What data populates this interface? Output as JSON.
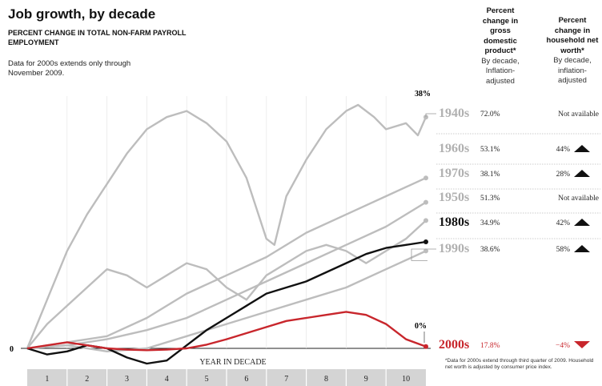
{
  "title": "Job growth, by decade",
  "subtitle": "PERCENT CHANGE IN TOTAL NON-FARM PAYROLL EMPLOYMENT",
  "note": "Data for 2000s extends only through November 2009.",
  "gdp_header": {
    "bold": "Percent change in gross domestic product*",
    "normal": "By decade, Inflation-adjusted"
  },
  "nw_header": {
    "bold": "Percent change in household net worth*",
    "normal": "By decade, inflation-adjusted"
  },
  "footnote": "*Data for 2000s extend through third quarter of 2009. Household net worth is adjusted by consumer price index.",
  "colors": {
    "gray": "#bdbdbd",
    "black": "#111111",
    "red": "#c8262c",
    "axis_band": "#d4d4d4"
  },
  "chart_data": {
    "type": "line",
    "x_label": "YEAR IN DECADE",
    "x_ticks": [
      "1",
      "2",
      "3",
      "4",
      "5",
      "6",
      "7",
      "8",
      "9",
      "10"
    ],
    "xlim": [
      0,
      10
    ],
    "y_zero_label": "0",
    "annotations": [
      {
        "text": "38%",
        "series": "1940s"
      },
      {
        "text": "0%",
        "series": "2000s"
      }
    ],
    "series": [
      {
        "name": "1940s",
        "style": "gray",
        "gdp": "72.0%",
        "networth": "Not available",
        "arrow": "",
        "x": [
          0,
          0.5,
          1,
          1.5,
          2,
          2.5,
          3,
          3.5,
          4,
          4.5,
          5,
          5.5,
          6,
          6.2,
          6.5,
          7,
          7.5,
          8,
          8.3,
          8.7,
          9,
          9.5,
          9.8,
          10
        ],
        "y": [
          0,
          8,
          16,
          22,
          27,
          32,
          36,
          38,
          39,
          37,
          34,
          28,
          18,
          17,
          25,
          31,
          36,
          39,
          40,
          38,
          36,
          37,
          35,
          38
        ]
      },
      {
        "name": "1960s",
        "style": "gray",
        "gdp": "53.1%",
        "networth": "44%",
        "arrow": "up",
        "x": [
          0,
          1,
          2,
          3,
          4,
          5,
          6,
          7,
          8,
          9,
          10
        ],
        "y": [
          0,
          1,
          2,
          5,
          9,
          12,
          15,
          19,
          22,
          25,
          28
        ]
      },
      {
        "name": "1970s",
        "style": "gray",
        "gdp": "38.1%",
        "networth": "28%",
        "arrow": "up",
        "x": [
          0,
          1,
          2,
          3,
          4,
          5,
          6,
          7,
          8,
          9,
          10
        ],
        "y": [
          0,
          0.5,
          1.5,
          3,
          5,
          8,
          11,
          14,
          17,
          20,
          24
        ]
      },
      {
        "name": "1950s",
        "style": "gray",
        "gdp": "51.3%",
        "networth": "Not available",
        "arrow": "",
        "x": [
          0,
          0.5,
          1,
          1.5,
          2,
          2.5,
          3,
          3.5,
          4,
          4.5,
          5,
          5.5,
          6,
          6.5,
          7,
          7.5,
          8,
          8.5,
          9,
          9.5,
          10
        ],
        "y": [
          0,
          4,
          7,
          10,
          13,
          12,
          10,
          12,
          14,
          13,
          10,
          8,
          12,
          14,
          16,
          17,
          16,
          14,
          16,
          18,
          21
        ]
      },
      {
        "name": "1980s",
        "style": "black",
        "gdp": "34.9%",
        "networth": "42%",
        "arrow": "up",
        "x": [
          0,
          0.5,
          1,
          1.5,
          2,
          2.5,
          3,
          3.5,
          4,
          4.5,
          5,
          5.5,
          6,
          6.5,
          7,
          7.5,
          8,
          8.5,
          9,
          9.5,
          10
        ],
        "y": [
          0,
          -1,
          -0.5,
          0.5,
          0,
          -1.5,
          -2.5,
          -2,
          0.5,
          3,
          5,
          7,
          9,
          10,
          11,
          12.5,
          14,
          15.5,
          16.5,
          17,
          17.5
        ]
      },
      {
        "name": "1990s",
        "style": "gray",
        "gdp": "38.6%",
        "networth": "58%",
        "arrow": "up",
        "x": [
          0,
          1,
          2,
          3,
          4,
          5,
          6,
          7,
          8,
          9,
          10
        ],
        "y": [
          0,
          0.5,
          -0.5,
          0,
          2,
          4,
          6,
          8,
          10,
          13,
          16
        ]
      },
      {
        "name": "2000s",
        "style": "red",
        "gdp": "17.8%",
        "networth": "−4%",
        "arrow": "down",
        "x": [
          0,
          0.5,
          1,
          1.5,
          2,
          2.5,
          3,
          3.5,
          4,
          4.5,
          5,
          5.5,
          6,
          6.5,
          7,
          7.5,
          8,
          8.5,
          9,
          9.5,
          10
        ],
        "y": [
          0,
          0.5,
          1,
          0.5,
          0,
          -0.2,
          -0.3,
          -0.2,
          0,
          0.6,
          1.5,
          2.5,
          3.5,
          4.5,
          5,
          5.5,
          6,
          5.5,
          4,
          1.5,
          0.3
        ]
      }
    ]
  }
}
